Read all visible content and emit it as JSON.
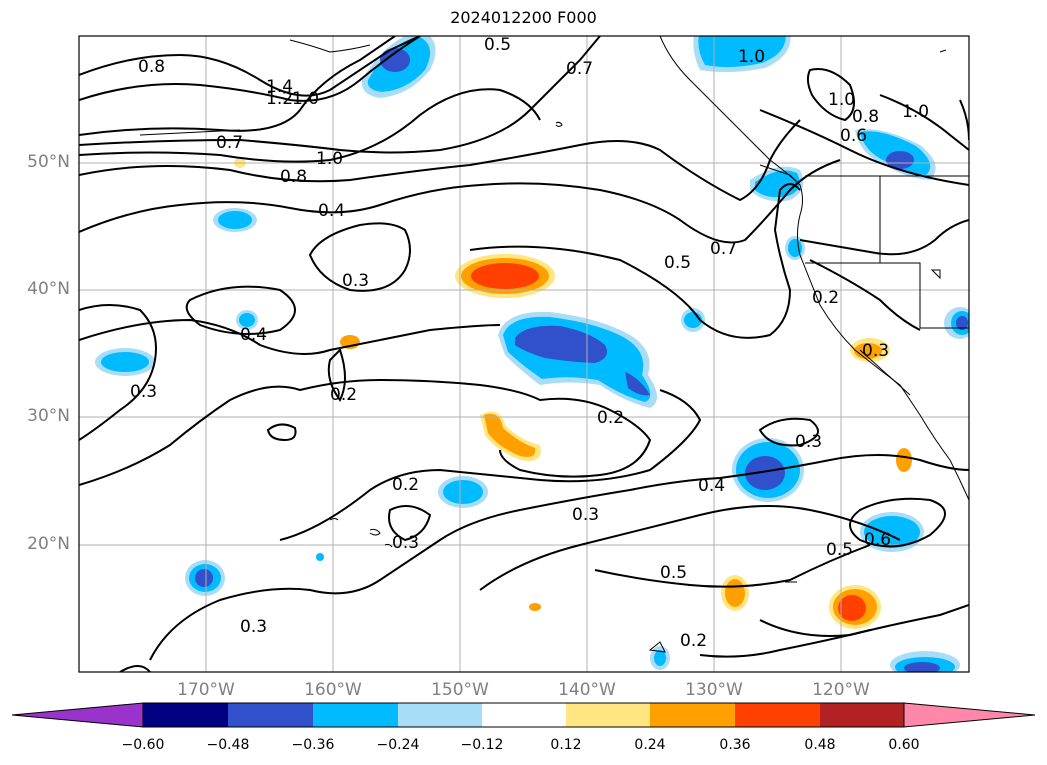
{
  "title": "2024012200 F000",
  "lat_labels": [
    "50°N",
    "40°N",
    "30°N",
    "20°N"
  ],
  "lon_labels": [
    "170°W",
    "160°W",
    "150°W",
    "140°W",
    "130°W",
    "120°W"
  ],
  "colorbar": {
    "colors": [
      "#9933cc",
      "#000080",
      "#3050cc",
      "#00bbff",
      "#a8ddf8",
      "#ffffff",
      "#ffe680",
      "#ffa000",
      "#ff4000",
      "#b22222",
      "#ff88aa"
    ],
    "ticks": [
      "−0.60",
      "−0.48",
      "−0.36",
      "−0.24",
      "−0.12",
      "0.12",
      "0.24",
      "0.36",
      "0.48",
      "0.60"
    ]
  },
  "contour_labels": [
    "0.8",
    "1.4",
    "1.2",
    "1.0",
    "0.5",
    "0.7",
    "1.0",
    "1.0",
    "0.8",
    "1.0",
    "0.6",
    "0.7",
    "1.0",
    "0.8",
    "0.4",
    "0.7",
    "0.5",
    "0.3",
    "0.4",
    "0.2",
    "0.3",
    "0.2",
    "0.2",
    "0.3",
    "0.3",
    "0.4",
    "0.3",
    "0.2",
    "0.3",
    "0.5",
    "0.6",
    "0.5",
    "0.3",
    "0.2"
  ],
  "chart_data": {
    "type": "contour-map",
    "title": "2024012200 F000",
    "projection": "lat-lon",
    "lon_range": [
      -180,
      -110
    ],
    "lat_range": [
      10,
      60
    ],
    "grid": true,
    "colorbar_levels": [
      -0.6,
      -0.48,
      -0.36,
      -0.24,
      -0.12,
      0.12,
      0.24,
      0.36,
      0.48,
      0.6
    ]
  }
}
